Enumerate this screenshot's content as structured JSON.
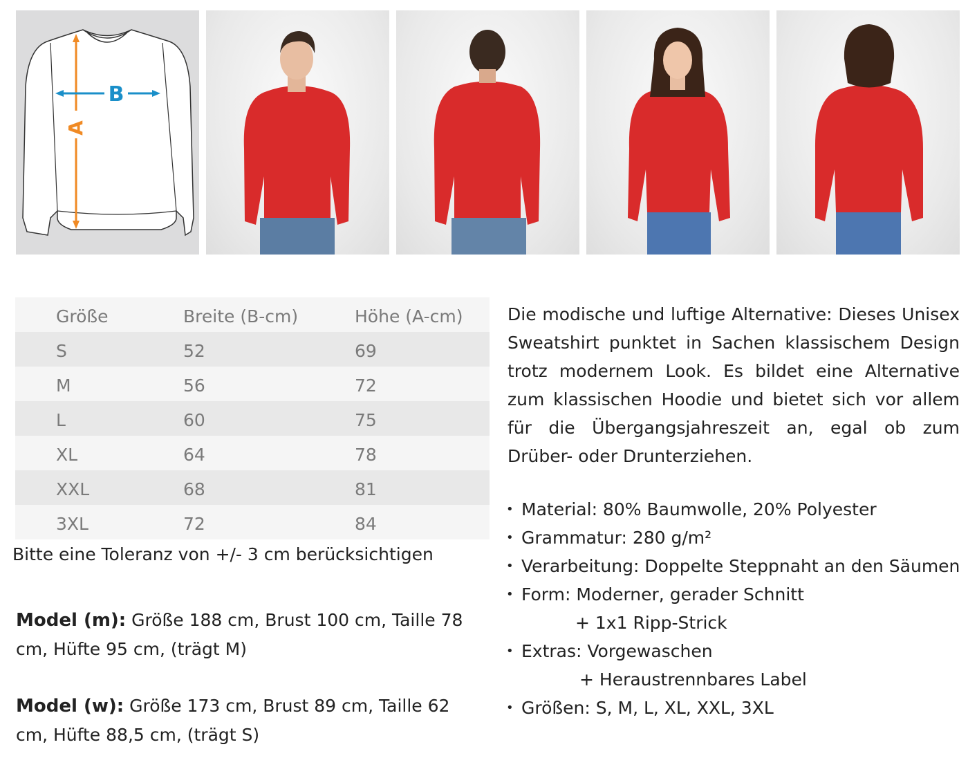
{
  "diagram": {
    "label_a": "A",
    "label_b": "B",
    "color_a": "#f08a24",
    "color_b": "#1a8fc9"
  },
  "photos": [
    {
      "label": "man-front"
    },
    {
      "label": "man-back"
    },
    {
      "label": "woman-front"
    },
    {
      "label": "woman-back"
    }
  ],
  "product_color": "#d92b2b",
  "size_table": {
    "headers": [
      "Größe",
      "Breite (B-cm)",
      "Höhe (A-cm)"
    ],
    "rows": [
      [
        "S",
        "52",
        "69"
      ],
      [
        "M",
        "56",
        "72"
      ],
      [
        "L",
        "60",
        "75"
      ],
      [
        "XL",
        "64",
        "78"
      ],
      [
        "XXL",
        "68",
        "81"
      ],
      [
        "3XL",
        "72",
        "84"
      ]
    ]
  },
  "tolerance_note": "Bitte eine Toleranz von +/- 3 cm berücksichtigen",
  "models": [
    {
      "label": "Model (m):",
      "text": " Größe 188 cm, Brust 100 cm, Taille 78 cm, Hüfte 95 cm, (trägt M)"
    },
    {
      "label": "Model (w):",
      "text": " Größe 173 cm, Brust 89 cm, Taille 62 cm, Hüfte 88,5 cm, (trägt S)"
    }
  ],
  "description": "Die modische und luftige Alternative: Dieses Unisex Sweatshirt punktet in Sachen klassischem Design trotz modernem Look. Es bildet eine Alternative zum klassischen Hoodie und bietet sich vor allem für die Übergangsjahreszeit an, egal ob zum Drüber- oder Drunterziehen.",
  "features": [
    {
      "text": "Material: 80% Baumwolle, 20% Polyester"
    },
    {
      "text": "Grammatur: 280 g/m²"
    },
    {
      "text": "Verarbeitung: Doppelte Steppnaht an den Säumen"
    },
    {
      "text": "Form: Moderner, gerader Schnitt",
      "sub": "+ 1x1 Ripp-Strick"
    },
    {
      "text": "Extras: Vorgewaschen",
      "sub": "+ Heraustrennbares Label"
    },
    {
      "text": "Größen:  S, M, L, XL, XXL, 3XL"
    }
  ]
}
